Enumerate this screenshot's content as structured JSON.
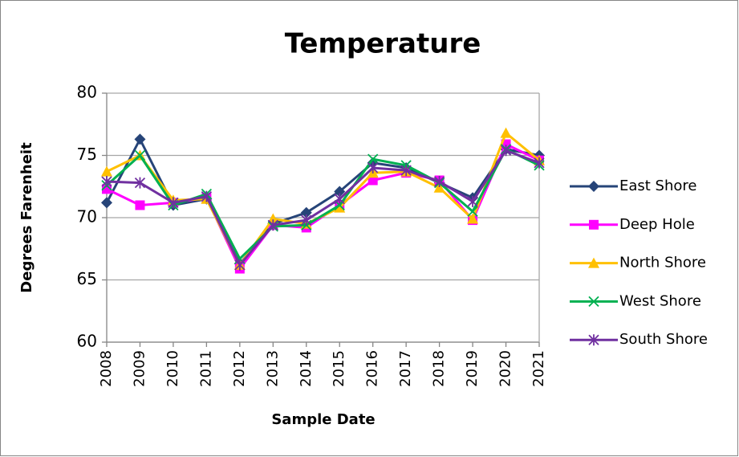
{
  "chart_data": {
    "type": "line",
    "title": "Temperature",
    "x_label": "Sample Date",
    "y_label": "Degrees Farenheit",
    "categories": [
      "2008",
      "2009",
      "2010",
      "2011",
      "2012",
      "2013",
      "2014",
      "2015",
      "2016",
      "2017",
      "2018",
      "2019",
      "2020",
      "2021"
    ],
    "ylim": [
      60,
      80
    ],
    "yticks": [
      60,
      65,
      70,
      75,
      80
    ],
    "grid": true,
    "legend": "right",
    "series": [
      {
        "name": "East Shore",
        "color": "#264478",
        "marker": "diamond",
        "values": [
          71.2,
          76.3,
          71.0,
          71.5,
          66.3,
          69.5,
          70.4,
          72.1,
          74.4,
          74.0,
          72.8,
          71.6,
          75.5,
          75.0
        ]
      },
      {
        "name": "Deep Hole",
        "color": "#ff00ff",
        "marker": "square",
        "values": [
          72.3,
          71.0,
          71.2,
          71.6,
          65.9,
          69.4,
          69.2,
          71.0,
          73.0,
          73.6,
          73.0,
          69.8,
          75.9,
          74.6
        ]
      },
      {
        "name": "North Shore",
        "color": "#ffc000",
        "marker": "triangle",
        "values": [
          73.7,
          75.0,
          71.4,
          71.5,
          66.2,
          69.9,
          69.5,
          70.8,
          73.6,
          73.7,
          72.4,
          69.9,
          76.8,
          74.6
        ]
      },
      {
        "name": "West Shore",
        "color": "#00b050",
        "marker": "x",
        "values": [
          72.6,
          75.0,
          71.0,
          71.9,
          66.7,
          69.3,
          69.4,
          71.0,
          74.7,
          74.2,
          72.8,
          70.5,
          75.5,
          74.2
        ]
      },
      {
        "name": "South Shore",
        "color": "#7030a0",
        "marker": "star",
        "values": [
          72.9,
          72.8,
          71.2,
          71.7,
          66.2,
          69.4,
          69.8,
          71.5,
          74.0,
          73.8,
          72.9,
          71.3,
          75.4,
          74.4
        ]
      }
    ]
  }
}
